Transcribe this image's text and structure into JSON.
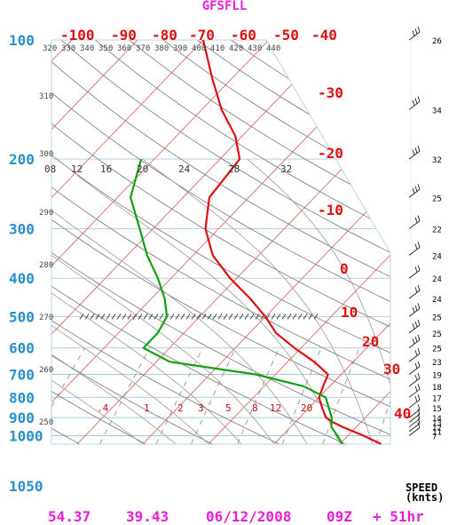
{
  "title": "GFSFLL",
  "footer": {
    "lat": "54.37",
    "lon": "39.43",
    "date": "06/12/2008",
    "hour": "09Z",
    "forecast": "+ 51hr"
  },
  "speed_unit_line1": "SPEED",
  "speed_unit_line2": "(knts)",
  "colors": {
    "title": "#e81ed8",
    "pressure_labels": "#2b8fc9",
    "temperature_labels": "#e01010",
    "temperature_profile": "#e01010",
    "dewpoint_profile": "#12a012",
    "isotherms": "#e26a6a",
    "dry_adiabats": "#777777",
    "moist_adiabats": "#9a9a9a",
    "isobars": "#a9cbe2"
  },
  "chart_data": {
    "type": "line",
    "subtype": "skew-T log-p diagram",
    "pressure_levels_hPa": [
      100,
      200,
      300,
      400,
      500,
      600,
      700,
      800,
      900,
      1000,
      1050
    ],
    "top_temperature_labels_C": [
      "-100",
      "-90",
      "-80",
      "-70",
      "-60",
      "-50",
      "-40"
    ],
    "right_temperature_labels_C": [
      "-30",
      "-20",
      "-10",
      "0",
      "10",
      "20",
      "30",
      "40"
    ],
    "theta_labels_K": [
      "320",
      "330",
      "340",
      "350",
      "360",
      "370",
      "380",
      "390",
      "400",
      "410",
      "420",
      "430",
      "440"
    ],
    "left_theta_labels_K": [
      "310",
      "300",
      "290",
      "280",
      "270",
      "260",
      "250"
    ],
    "mixing_ratio_labels_gkg": [
      "08",
      "12",
      "16",
      "20",
      "24",
      "28",
      "32"
    ],
    "mixing_ratio_labels_lower_gkg": [
      ".4",
      "1",
      "2",
      "3",
      "5",
      "8",
      "12",
      "20"
    ],
    "temperature_profile": {
      "p": [
        1050,
        1000,
        975,
        950,
        925,
        900,
        850,
        800,
        750,
        700,
        650,
        600,
        550,
        500,
        450,
        400,
        350,
        300,
        250,
        200,
        175,
        150,
        125,
        100
      ],
      "t": [
        26.3,
        22.4,
        20.2,
        17.9,
        15.8,
        14.0,
        12.0,
        10.0,
        9.0,
        8.0,
        4.0,
        -1.0,
        -6.0,
        -10.0,
        -15.0,
        -21.0,
        -27.0,
        -32.0,
        -36.0,
        -37.0,
        -41.0,
        -47.0,
        -53.0,
        -60.0
      ]
    },
    "dewpoint_profile": {
      "p": [
        1050,
        1000,
        950,
        900,
        850,
        800,
        750,
        700,
        650,
        600,
        550,
        500,
        450,
        400,
        350,
        300,
        250,
        200
      ],
      "td": [
        20.4,
        18.4,
        16.2,
        14.9,
        13.0,
        11.0,
        6.0,
        -3.0,
        -18.0,
        -24.0,
        -24.0,
        -25.0,
        -28.0,
        -32.0,
        -37.0,
        -42.0,
        -48.0,
        -52.0
      ]
    },
    "wind_speed_knots": [
      {
        "p": 100,
        "speed": "26"
      },
      {
        "p": 150,
        "speed": "34"
      },
      {
        "p": 200,
        "speed": "32"
      },
      {
        "p": 250,
        "speed": "25"
      },
      {
        "p": 300,
        "speed": "22"
      },
      {
        "p": 350,
        "speed": "24"
      },
      {
        "p": 400,
        "speed": "24"
      },
      {
        "p": 450,
        "speed": "24"
      },
      {
        "p": 500,
        "speed": "25"
      },
      {
        "p": 550,
        "speed": "25"
      },
      {
        "p": 600,
        "speed": "25"
      },
      {
        "p": 650,
        "speed": "23"
      },
      {
        "p": 700,
        "speed": "19"
      },
      {
        "p": 750,
        "speed": "18"
      },
      {
        "p": 800,
        "speed": "17"
      },
      {
        "p": 850,
        "speed": "15"
      },
      {
        "p": 900,
        "speed": "14"
      },
      {
        "p": 925,
        "speed": "13"
      },
      {
        "p": 950,
        "speed": "12"
      },
      {
        "p": 975,
        "speed": "11"
      },
      {
        "p": 1000,
        "speed": "7"
      }
    ],
    "tropopause_marker_hPa": 500
  }
}
